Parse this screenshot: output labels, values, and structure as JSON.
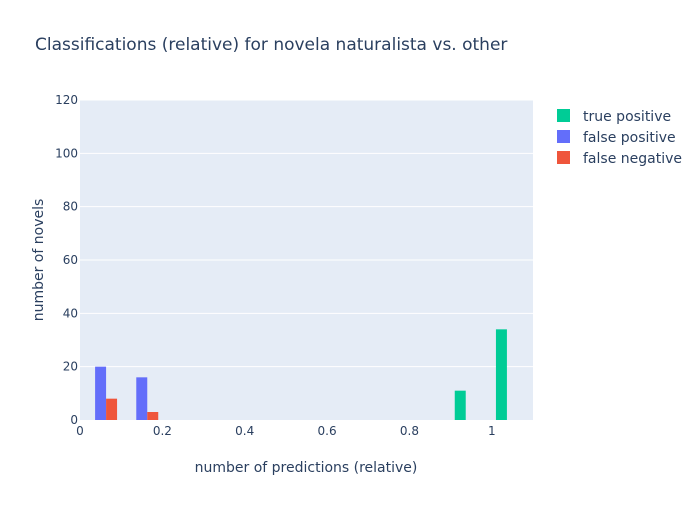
{
  "chart_data": {
    "type": "bar",
    "title": "Classifications (relative) for novela naturalista vs. other",
    "xlabel": "number of predictions (relative)",
    "ylabel": "number of novels",
    "xlim": [
      0,
      1.1
    ],
    "ylim": [
      0,
      120
    ],
    "x_ticks": [
      0,
      0.2,
      0.4,
      0.6,
      0.8,
      1
    ],
    "x_tick_labels": [
      "0",
      "0.2",
      "0.4",
      "0.6",
      "0.8",
      "1"
    ],
    "y_ticks": [
      0,
      20,
      40,
      60,
      80,
      100,
      120
    ],
    "y_tick_labels": [
      "0",
      "20",
      "40",
      "60",
      "80",
      "100",
      "120"
    ],
    "bin_width": 0.1,
    "bin_starts": [
      0.0,
      0.1,
      0.9,
      1.0
    ],
    "grid": true,
    "legend_position": "right",
    "series": [
      {
        "name": "true positive",
        "color": "#00cc96",
        "values": [
          0,
          0,
          11,
          34
        ]
      },
      {
        "name": "false positive",
        "color": "#636efa",
        "values": [
          20,
          16,
          0,
          0
        ]
      },
      {
        "name": "false negative",
        "color": "#ef553b",
        "values": [
          8,
          3,
          0,
          0
        ]
      }
    ],
    "plot_background": "#e5ecf6",
    "gridline_color": "#ffffff"
  }
}
